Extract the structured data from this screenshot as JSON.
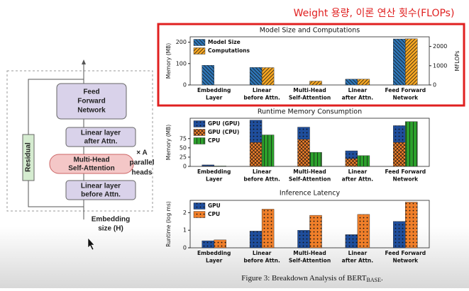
{
  "annotation": "Weight 용량, 이론 연산 횟수(FLOPs)",
  "diagram": {
    "nodes": [
      {
        "label": [
          "Feed",
          "Forward",
          "Network"
        ]
      },
      {
        "label": [
          "Linear layer",
          "after Attn."
        ]
      },
      {
        "label": [
          "Multi-Head",
          "Self-Attention"
        ]
      },
      {
        "label": [
          "Linear layer",
          "before Attn."
        ]
      },
      {
        "label": [
          "Residual"
        ]
      }
    ],
    "heads_note": [
      "× A",
      "parallel",
      "heads"
    ],
    "input_label": [
      "Embedding",
      "size (H)"
    ]
  },
  "chart_data": [
    {
      "type": "bar",
      "title": "Model Size and Computations",
      "categories": [
        [
          "Embedding",
          "Layer"
        ],
        [
          "Linear",
          "before Attn."
        ],
        [
          "Multi-Head",
          "Self-Attention"
        ],
        [
          "Linear",
          "after Attn."
        ],
        [
          "Feed Forward",
          "Network"
        ]
      ],
      "y_label": "Memory (MB)",
      "y2_label": "MFLOPs",
      "ylim": [
        0,
        225
      ],
      "yticks": [
        0,
        100,
        200
      ],
      "y2lim": [
        0,
        2500
      ],
      "y2ticks": [
        0,
        1000,
        2000
      ],
      "legend": "upper left",
      "series": [
        {
          "name": "Model Size",
          "color": "#2e75b6",
          "pattern": "hatch-back",
          "values": [
            92,
            82,
            0,
            27,
            215
          ]
        },
        {
          "name": "Computations",
          "color": "#f5a623",
          "pattern": "hatch-fwd",
          "axis": "y2",
          "values": [
            0,
            900,
            200,
            300,
            2400
          ]
        }
      ]
    },
    {
      "type": "bar",
      "title": "Runtime Memory Consumption",
      "categories": [
        [
          "Embedding",
          "Layer"
        ],
        [
          "Linear",
          "before Attn."
        ],
        [
          "Multi-Head",
          "Self-Attention"
        ],
        [
          "Linear",
          "after Attn."
        ],
        [
          "Feed Forward",
          "Network"
        ]
      ],
      "y_label": "Memory (MB)",
      "ylim": [
        0,
        130
      ],
      "yticks": [
        0,
        25,
        50,
        75
      ],
      "legend": "upper left",
      "stack_groups": [
        [
          1,
          0
        ],
        [
          2
        ]
      ],
      "series": [
        {
          "name": "GPU (GPU)",
          "color": "#1f4e9c",
          "pattern": "dots",
          "values": [
            3,
            60,
            33,
            21,
            45
          ]
        },
        {
          "name": "GPU (CPU)",
          "color": "#f07f2a",
          "pattern": "cross",
          "values": [
            1,
            65,
            73,
            21,
            65
          ]
        },
        {
          "name": "CPU",
          "color": "#2ca02c",
          "pattern": "vlines",
          "values": [
            1,
            85,
            38,
            29,
            121
          ]
        }
      ]
    },
    {
      "type": "bar",
      "title": "Inference Latency",
      "categories": [
        [
          "Embedding",
          "Layer"
        ],
        [
          "Linear",
          "before Attn."
        ],
        [
          "Multi-Head",
          "Self-Attention"
        ],
        [
          "Linear",
          "after Attn."
        ],
        [
          "Feed Forward",
          "Network"
        ]
      ],
      "y_label": "Runtime (log ms)",
      "ylim": [
        0,
        2.7
      ],
      "yticks": [
        0,
        1,
        2
      ],
      "legend": "upper left",
      "series": [
        {
          "name": "GPU",
          "color": "#1f4e9c",
          "pattern": "dots",
          "values": [
            0.4,
            0.95,
            1.0,
            0.75,
            1.5
          ]
        },
        {
          "name": "CPU",
          "color": "#f07f2a",
          "pattern": "dots",
          "values": [
            0.45,
            2.2,
            1.85,
            1.9,
            2.6
          ]
        }
      ]
    }
  ],
  "caption": {
    "text": "Figure 3: Breakdown Analysis of BERT",
    "subscript": "BASE",
    "end": "."
  }
}
